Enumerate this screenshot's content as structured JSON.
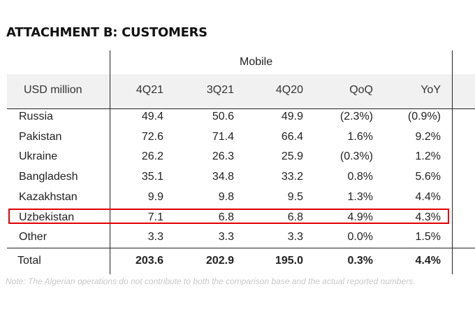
{
  "title": "ATTACHMENT B: CUSTOMERS",
  "table": {
    "group_header": "Mobile",
    "columns": [
      "USD million",
      "4Q21",
      "3Q21",
      "4Q20",
      "QoQ",
      "YoY"
    ],
    "rows": [
      {
        "country": "Russia",
        "q4_21": "49.4",
        "q3_21": "50.6",
        "q4_20": "49.9",
        "qoq": "(2.3%)",
        "yoy": "(0.9%)"
      },
      {
        "country": "Pakistan",
        "q4_21": "72.6",
        "q3_21": "71.4",
        "q4_20": "66.4",
        "qoq": "1.6%",
        "yoy": "9.2%"
      },
      {
        "country": "Ukraine",
        "q4_21": "26.2",
        "q3_21": "26.3",
        "q4_20": "25.9",
        "qoq": "(0.3%)",
        "yoy": "1.2%"
      },
      {
        "country": "Bangladesh",
        "q4_21": "35.1",
        "q3_21": "34.8",
        "q4_20": "33.2",
        "qoq": "0.8%",
        "yoy": "5.6%"
      },
      {
        "country": "Kazakhstan",
        "q4_21": "9.9",
        "q3_21": "9.8",
        "q4_20": "9.5",
        "qoq": "1.3%",
        "yoy": "4.4%"
      },
      {
        "country": "Uzbekistan",
        "q4_21": "7.1",
        "q3_21": "6.8",
        "q4_20": "6.8",
        "qoq": "4.9%",
        "yoy": "4.3%"
      },
      {
        "country": "Other",
        "q4_21": "3.3",
        "q3_21": "3.3",
        "q4_20": "3.3",
        "qoq": "0.0%",
        "yoy": "1.5%"
      }
    ],
    "total": {
      "country": "Total",
      "q4_21": "203.6",
      "q3_21": "202.9",
      "q4_20": "195.0",
      "qoq": "0.3%",
      "yoy": "4.4%"
    },
    "highlighted_row": "Uzbekistan",
    "highlight_color": "#e00000"
  },
  "note": "Note: The Algerian operations do not contribute to both the comparison base and the actual reported numbers."
}
